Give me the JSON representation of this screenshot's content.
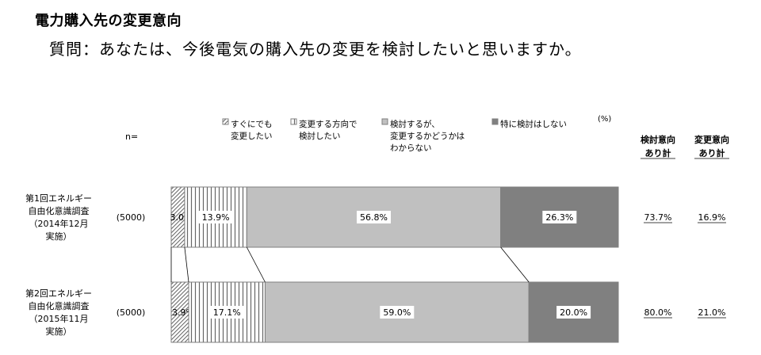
{
  "title": "電力購入先の変更意向",
  "question": "質問：あなたは、今後電気の購入先の変更を検討したいと思いますか。",
  "n_label": "n=",
  "unit_label": "(%)",
  "summary_headers": [
    [
      "検討意向",
      "あり計"
    ],
    [
      "変更意向",
      "あり計"
    ]
  ],
  "colors": {
    "soon": "#ffffff",
    "direction": "#ffffff",
    "consider": "#c0c0c0",
    "no": "#808080",
    "border": "#7f7f7f"
  },
  "chart_data": {
    "type": "bar",
    "orientation": "horizontal",
    "stacked": true,
    "percent": true,
    "xlim": [
      0,
      100
    ],
    "categories": [
      [
        "第1回エネルギー",
        "自由化意識調査",
        "（2014年12月",
        "実施）"
      ],
      [
        "第2回エネルギー",
        "自由化意識調査",
        "（2015年11月",
        "実施）"
      ]
    ],
    "n": [
      "(5000)",
      "(5000)"
    ],
    "legend": "top",
    "series": [
      {
        "key": "soon",
        "name_lines": [
          "すぐにでも",
          "変更したい"
        ],
        "values": [
          3.0,
          3.9
        ],
        "pattern": "diagonal"
      },
      {
        "key": "direction",
        "name_lines": [
          "変更する方向で",
          "検討したい"
        ],
        "values": [
          13.9,
          17.1
        ],
        "pattern": "vertical"
      },
      {
        "key": "consider",
        "name_lines": [
          "検討するが、",
          "変更するかどうかは",
          "わからない"
        ],
        "values": [
          56.8,
          59.0
        ],
        "pattern": "solid"
      },
      {
        "key": "no",
        "name_lines": [
          "特に検討はしない"
        ],
        "values": [
          26.3,
          20.0
        ],
        "pattern": "solid"
      }
    ],
    "data_labels": [
      [
        "3.0%",
        "13.9%",
        "56.8%",
        "26.3%"
      ],
      [
        "3.9%",
        "17.1%",
        "59.0%",
        "20.0%"
      ]
    ],
    "summary": [
      [
        "73.7%",
        "16.9%"
      ],
      [
        "80.0%",
        "21.0%"
      ]
    ]
  }
}
